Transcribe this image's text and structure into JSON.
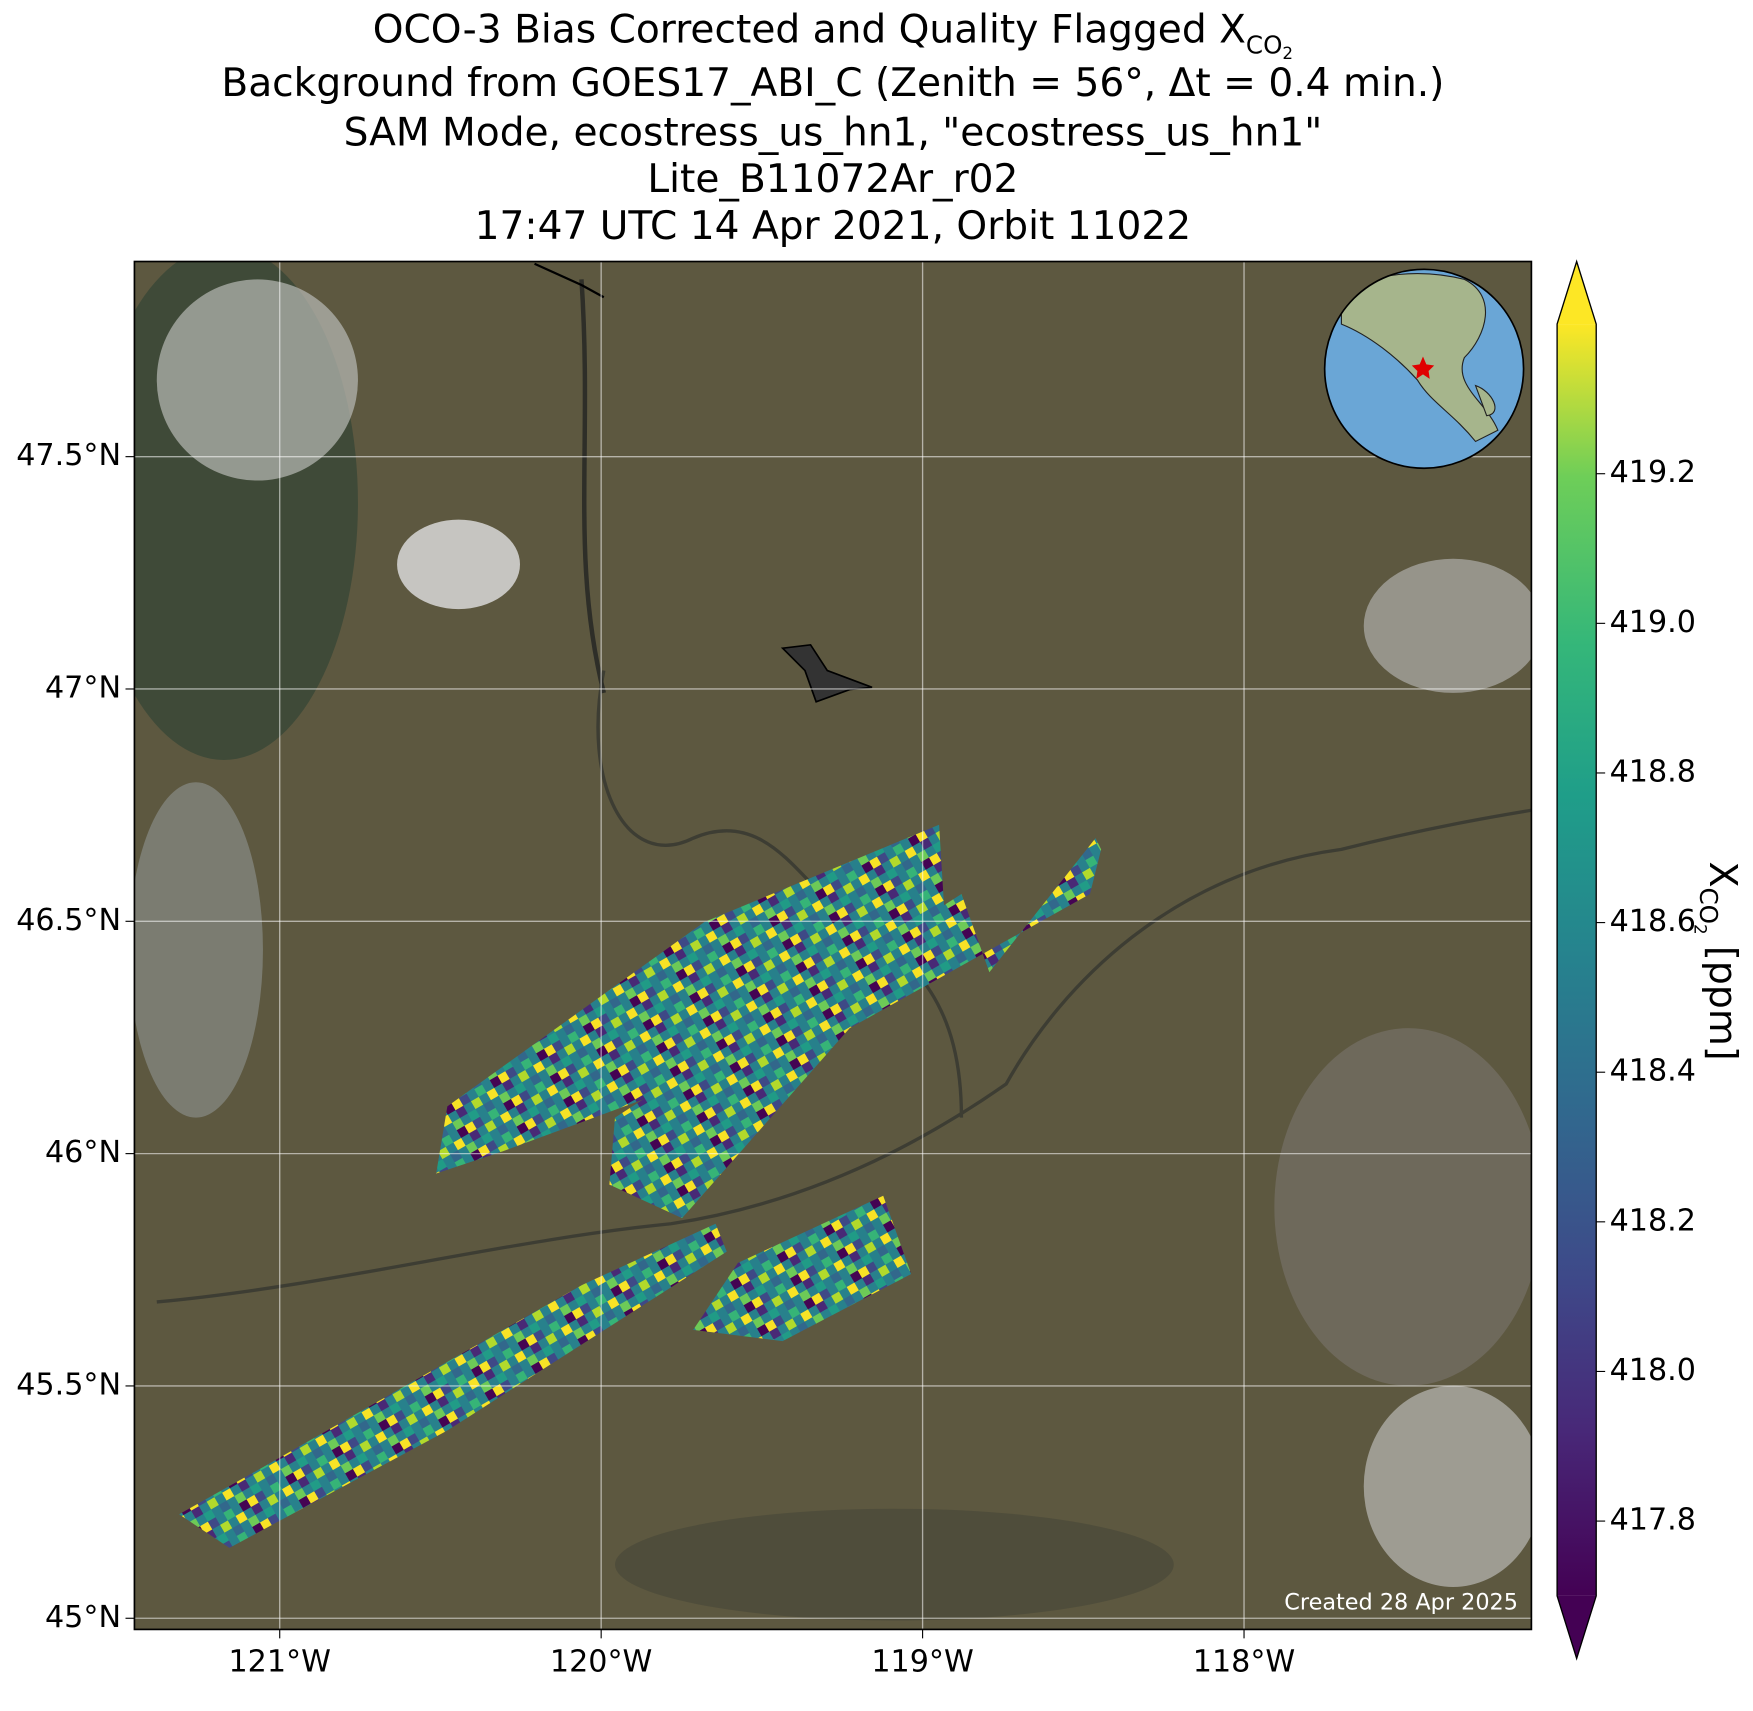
{
  "title_lines": [
    {
      "text": "OCO-3 Bias Corrected and Quality Flagged X",
      "sub": "CO",
      "subsub": "2"
    },
    "Background from GOES17_ABI_C (Zenith = 56°, Δt =  0.4 min.)",
    "SAM Mode, ecostress_us_hn1, \"ecostress_us_hn1\"",
    "Lite_B11072Ar_r02",
    "17:47 UTC 14 Apr 2021, Orbit 11022"
  ],
  "map": {
    "xlim": [
      -121.452,
      -117.106
    ],
    "ylim": [
      44.976,
      47.92
    ],
    "xticks": [
      {
        "value": -121,
        "label": "121°W"
      },
      {
        "value": -120,
        "label": "120°W"
      },
      {
        "value": -119,
        "label": "119°W"
      },
      {
        "value": -118,
        "label": "118°W"
      }
    ],
    "yticks": [
      {
        "value": 45,
        "label": "45°N"
      },
      {
        "value": 45.5,
        "label": "45.5°N"
      },
      {
        "value": 46,
        "label": "46°N"
      },
      {
        "value": 46.5,
        "label": "46.5°N"
      },
      {
        "value": 47,
        "label": "47°N"
      },
      {
        "value": 47.5,
        "label": "47.5°N"
      }
    ],
    "grid": true
  },
  "colorbar": {
    "label": {
      "text": "X",
      "sub": "CO",
      "subsub": "2",
      "unit": "[ppm]"
    },
    "lim": [
      417.7,
      419.4
    ],
    "ticks": [
      417.8,
      {
        "value": 418.0,
        "label": "418.0"
      },
      418.2,
      418.4,
      418.6,
      418.8,
      {
        "value": 419.0,
        "label": "419.0"
      },
      419.2
    ]
  },
  "footer": "Created 28 Apr 2025"
}
